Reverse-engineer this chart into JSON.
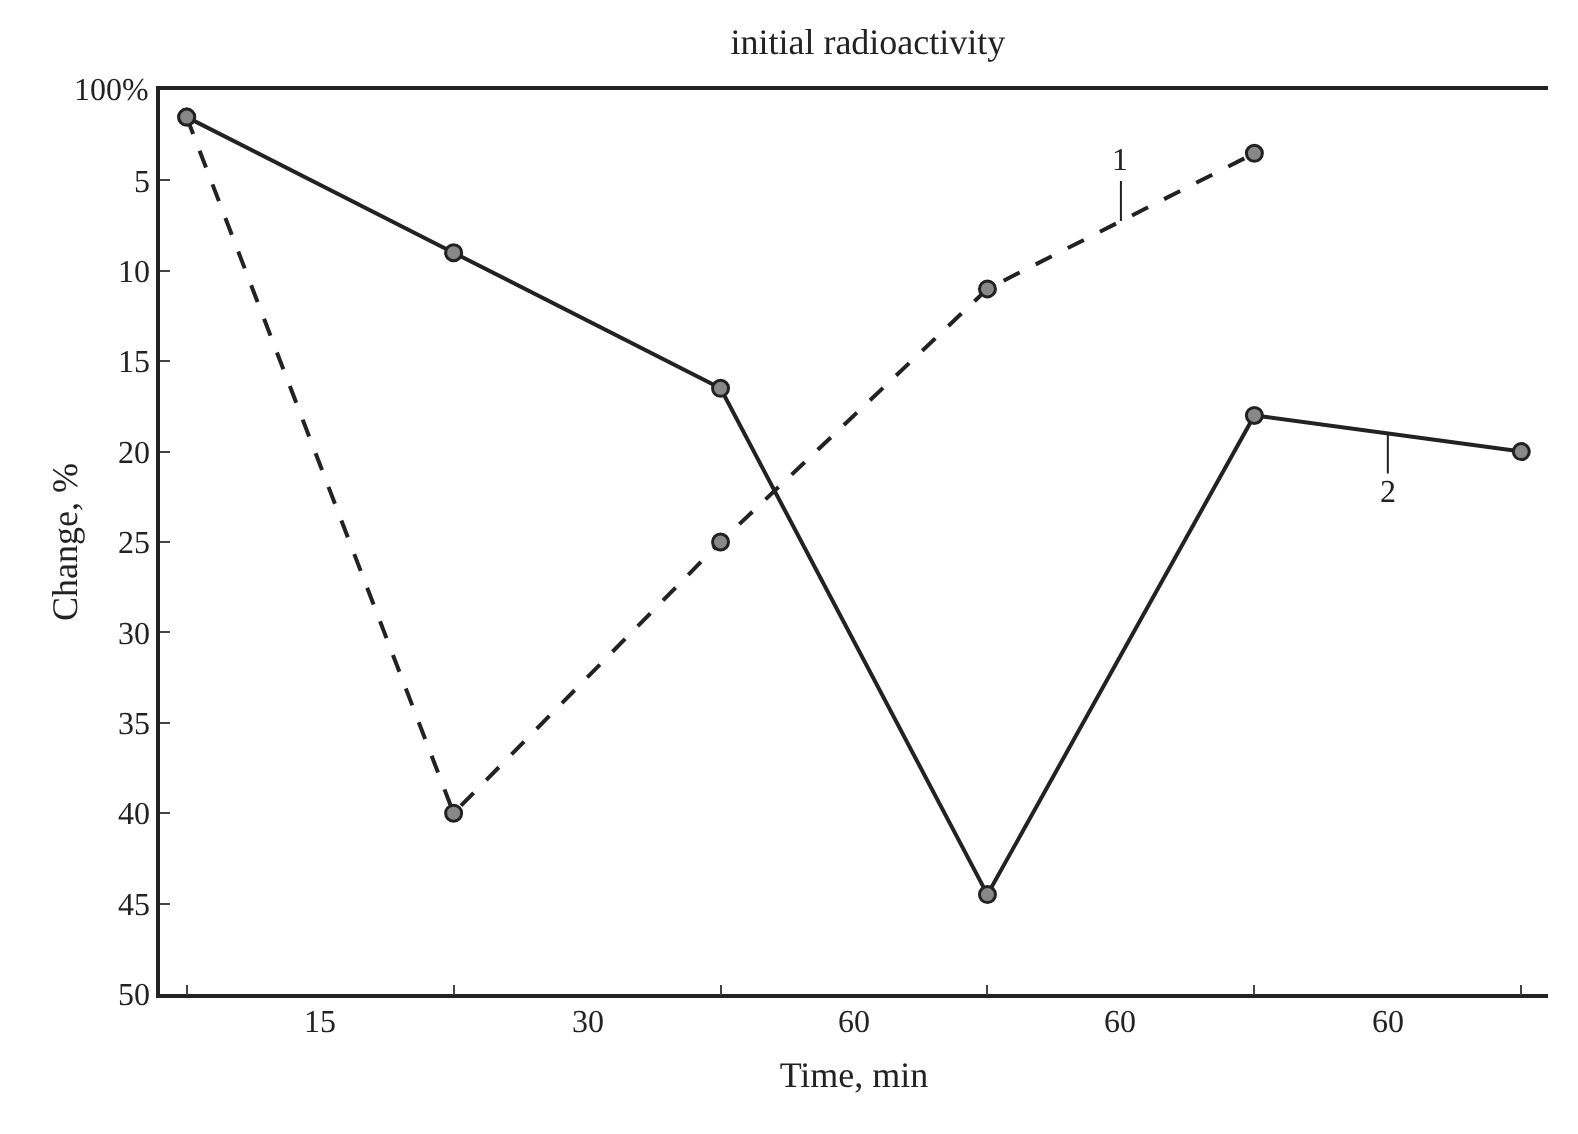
{
  "chart_data": {
    "type": "line",
    "title": "initial radioactivity",
    "xlabel": "Time, min",
    "ylabel": "Change, %",
    "categories": [
      null,
      null,
      null,
      null,
      null,
      null
    ],
    "series": [
      {
        "color": "#222222",
        "line_style": "dashed",
        "values": [
          1.5,
          40,
          25,
          11,
          3.5,
          null
        ]
      },
      {
        "color": "#222222",
        "line_style": "solid",
        "values": [
          1.5,
          9,
          16.5,
          44.5,
          18,
          20
        ]
      }
    ],
    "annotations": [
      "100%",
      "15",
      "30",
      "60",
      "60",
      "60",
      "1",
      "2"
    ],
    "ylim": [
      50,
      0
    ],
    "yticks": [
      5,
      10,
      15,
      20,
      25,
      30,
      35,
      40,
      45,
      50
    ],
    "marker": "circle"
  }
}
